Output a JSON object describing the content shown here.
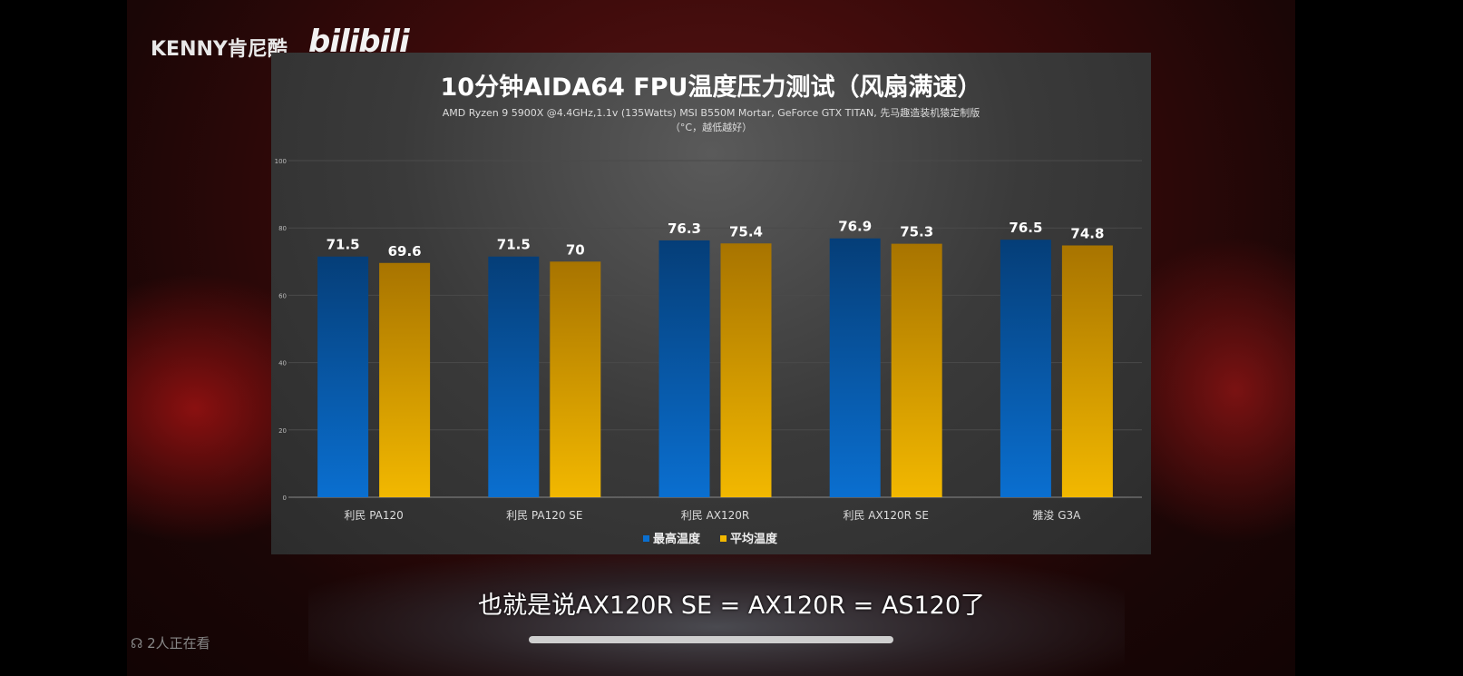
{
  "video": {
    "channel": "KENNY肯尼酷",
    "logo_text": "bilibili",
    "subtitle": "也就是说AX120R SE = AX120R = AS120了",
    "viewers": "2人正在看",
    "viewers_icon": "people-icon"
  },
  "chart_data": {
    "type": "bar",
    "title": "10分钟AIDA64  FPU温度压力测试（风扇满速）",
    "subtitle": "AMD Ryzen 9 5900X @4.4GHz,1.1v (135Watts) MSI B550M Mortar, GeForce GTX TITAN, 先马趣造装机猿定制版",
    "subtitle2": "（°C，越低越好）",
    "categories": [
      "利民 PA120",
      "利民 PA120 SE",
      "利民 AX120R",
      "利民 AX120R SE",
      "雅浚 G3A"
    ],
    "series": [
      {
        "name": "最高温度",
        "color": "#0a6fd0",
        "values": [
          71.5,
          71.5,
          76.3,
          76.9,
          76.5
        ]
      },
      {
        "name": "平均温度",
        "color": "#f2b800",
        "values": [
          69.6,
          70,
          75.4,
          75.3,
          74.8
        ]
      }
    ],
    "ylim": [
      0,
      100
    ],
    "yticks": [
      0,
      20,
      40,
      60,
      80,
      100
    ],
    "grid": true,
    "legend": "bottom"
  }
}
